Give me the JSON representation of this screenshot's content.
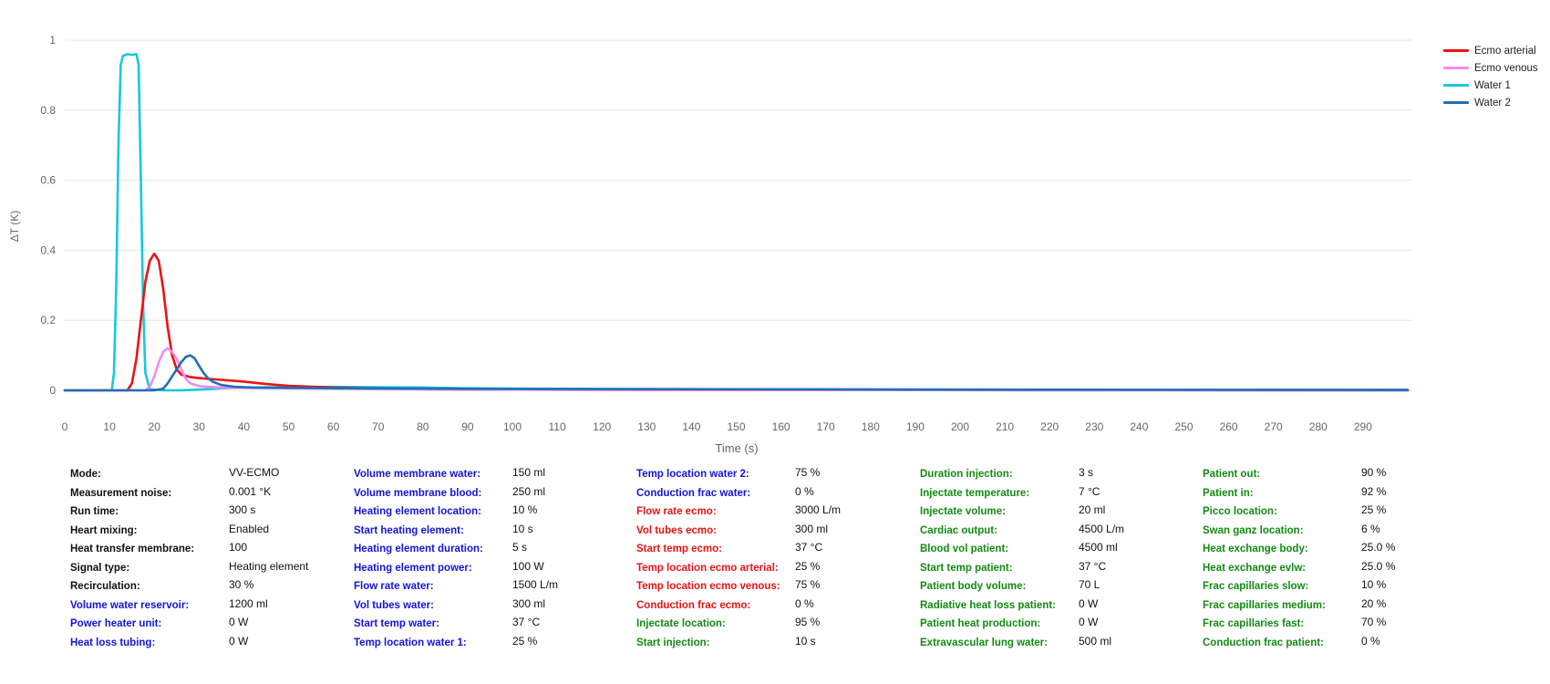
{
  "colors": {
    "black": "#111111",
    "blue": "#1414e0",
    "red": "#e81414",
    "green": "#138a13"
  },
  "chart_data": {
    "type": "line",
    "title": "",
    "xlabel": "Time (s)",
    "ylabel": "ΔT (K)",
    "xlim": [
      0,
      300
    ],
    "ylim": [
      0,
      1
    ],
    "x_ticks": [
      "0",
      "10",
      "20",
      "30",
      "40",
      "50",
      "60",
      "70",
      "80",
      "90",
      "100",
      "110",
      "120",
      "130",
      "140",
      "150",
      "160",
      "170",
      "180",
      "190",
      "200",
      "210",
      "220",
      "230",
      "240",
      "250",
      "260",
      "270",
      "280",
      "290"
    ],
    "y_ticks": [
      "0",
      "0.2",
      "0.4",
      "0.6",
      "0.8",
      "1"
    ],
    "grid": "horizontal",
    "legend": "top-right",
    "series": [
      {
        "name": "Ecmo arterial",
        "color": "#ee1111",
        "points": [
          [
            0,
            0
          ],
          [
            14,
            0
          ],
          [
            15,
            0.02
          ],
          [
            16,
            0.09
          ],
          [
            17,
            0.2
          ],
          [
            18,
            0.31
          ],
          [
            19,
            0.37
          ],
          [
            20,
            0.39
          ],
          [
            21,
            0.37
          ],
          [
            22,
            0.29
          ],
          [
            23,
            0.18
          ],
          [
            24,
            0.1
          ],
          [
            25,
            0.06
          ],
          [
            26,
            0.045
          ],
          [
            28,
            0.038
          ],
          [
            30,
            0.035
          ],
          [
            35,
            0.03
          ],
          [
            40,
            0.025
          ],
          [
            45,
            0.018
          ],
          [
            50,
            0.013
          ],
          [
            60,
            0.008
          ],
          [
            70,
            0.005
          ],
          [
            80,
            0.003
          ],
          [
            100,
            0.002
          ],
          [
            150,
            0.001
          ],
          [
            300,
            0
          ]
        ]
      },
      {
        "name": "Ecmo venous",
        "color": "#f08cf0",
        "points": [
          [
            0,
            0
          ],
          [
            18,
            0
          ],
          [
            19,
            0.01
          ],
          [
            20,
            0.04
          ],
          [
            21,
            0.08
          ],
          [
            22,
            0.11
          ],
          [
            23,
            0.12
          ],
          [
            24,
            0.11
          ],
          [
            25,
            0.09
          ],
          [
            26,
            0.06
          ],
          [
            27,
            0.035
          ],
          [
            28,
            0.02
          ],
          [
            30,
            0.012
          ],
          [
            35,
            0.008
          ],
          [
            40,
            0.007
          ],
          [
            50,
            0.006
          ],
          [
            60,
            0.005
          ],
          [
            80,
            0.003
          ],
          [
            100,
            0.002
          ],
          [
            150,
            0.001
          ],
          [
            300,
            0
          ]
        ]
      },
      {
        "name": "Water 1",
        "color": "#17c8e0",
        "points": [
          [
            0,
            0
          ],
          [
            10.5,
            0
          ],
          [
            11,
            0.05
          ],
          [
            11.5,
            0.3
          ],
          [
            12,
            0.7
          ],
          [
            12.5,
            0.93
          ],
          [
            13,
            0.955
          ],
          [
            14,
            0.96
          ],
          [
            15,
            0.958
          ],
          [
            16,
            0.96
          ],
          [
            16.5,
            0.93
          ],
          [
            17,
            0.6
          ],
          [
            17.5,
            0.25
          ],
          [
            18,
            0.05
          ],
          [
            19,
            0.003
          ],
          [
            22,
            0
          ],
          [
            26,
            0
          ],
          [
            30,
            0.002
          ],
          [
            35,
            0.006
          ],
          [
            40,
            0.008
          ],
          [
            50,
            0.009
          ],
          [
            60,
            0.01
          ],
          [
            70,
            0.009
          ],
          [
            80,
            0.008
          ],
          [
            90,
            0.006
          ],
          [
            100,
            0.005
          ],
          [
            120,
            0.004
          ],
          [
            150,
            0.003
          ],
          [
            200,
            0.002
          ],
          [
            250,
            0.001
          ],
          [
            300,
            0.001
          ]
        ]
      },
      {
        "name": "Water 2",
        "color": "#1f6fb8",
        "points": [
          [
            0,
            0
          ],
          [
            20,
            0
          ],
          [
            22,
            0.005
          ],
          [
            23,
            0.02
          ],
          [
            24,
            0.04
          ],
          [
            25,
            0.06
          ],
          [
            26,
            0.08
          ],
          [
            27,
            0.095
          ],
          [
            28,
            0.1
          ],
          [
            29,
            0.092
          ],
          [
            30,
            0.07
          ],
          [
            31,
            0.05
          ],
          [
            32,
            0.035
          ],
          [
            33,
            0.025
          ],
          [
            35,
            0.015
          ],
          [
            38,
            0.01
          ],
          [
            42,
            0.008
          ],
          [
            50,
            0.007
          ],
          [
            60,
            0.006
          ],
          [
            80,
            0.005
          ],
          [
            100,
            0.004
          ],
          [
            150,
            0.003
          ],
          [
            200,
            0.002
          ],
          [
            300,
            0.001
          ]
        ]
      }
    ]
  },
  "params": [
    [
      {
        "label": "Mode:",
        "value": "VV-ECMO",
        "c": "black"
      },
      {
        "label": "Measurement noise:",
        "value": "0.001 °K",
        "c": "black"
      },
      {
        "label": "Run time:",
        "value": "300 s",
        "c": "black"
      },
      {
        "label": "Heart mixing:",
        "value": "Enabled",
        "c": "black"
      },
      {
        "label": "Heat transfer membrane:",
        "value": "100",
        "c": "black"
      },
      {
        "label": "Signal type:",
        "value": "Heating element",
        "c": "black"
      },
      {
        "label": "Recirculation:",
        "value": "30 %",
        "c": "black"
      },
      {
        "label": "Volume water reservoir:",
        "value": "1200 ml",
        "c": "blue"
      },
      {
        "label": "Power heater unit:",
        "value": "0 W",
        "c": "blue"
      },
      {
        "label": "Heat loss tubing:",
        "value": "0 W",
        "c": "blue"
      }
    ],
    [
      {
        "label": "Volume membrane water:",
        "value": "150 ml",
        "c": "blue"
      },
      {
        "label": "Volume membrane blood:",
        "value": "250 ml",
        "c": "blue"
      },
      {
        "label": "Heating element location:",
        "value": "10 %",
        "c": "blue"
      },
      {
        "label": "Start heating element:",
        "value": "10 s",
        "c": "blue"
      },
      {
        "label": "Heating element duration:",
        "value": "5 s",
        "c": "blue"
      },
      {
        "label": "Heating element power:",
        "value": "100 W",
        "c": "blue"
      },
      {
        "label": "Flow rate water:",
        "value": "1500 L/m",
        "c": "blue"
      },
      {
        "label": "Vol tubes water:",
        "value": "300 ml",
        "c": "blue"
      },
      {
        "label": "Start temp water:",
        "value": "37 °C",
        "c": "blue"
      },
      {
        "label": "Temp location water 1:",
        "value": "25 %",
        "c": "blue"
      }
    ],
    [
      {
        "label": "Temp location water 2:",
        "value": "75 %",
        "c": "blue"
      },
      {
        "label": "Conduction frac water:",
        "value": "0 %",
        "c": "blue"
      },
      {
        "label": "Flow rate ecmo:",
        "value": "3000 L/m",
        "c": "red"
      },
      {
        "label": "Vol tubes ecmo:",
        "value": "300 ml",
        "c": "red"
      },
      {
        "label": "Start temp ecmo:",
        "value": "37 °C",
        "c": "red"
      },
      {
        "label": "Temp location ecmo arterial:",
        "value": "25 %",
        "c": "red"
      },
      {
        "label": "Temp location ecmo venous:",
        "value": "75 %",
        "c": "red"
      },
      {
        "label": "Conduction frac ecmo:",
        "value": "0 %",
        "c": "red"
      },
      {
        "label": "Injectate location:",
        "value": "95 %",
        "c": "green"
      },
      {
        "label": "Start injection:",
        "value": "10 s",
        "c": "green"
      }
    ],
    [
      {
        "label": "Duration injection:",
        "value": "3 s",
        "c": "green"
      },
      {
        "label": "Injectate temperature:",
        "value": "7 °C",
        "c": "green"
      },
      {
        "label": "Injectate volume:",
        "value": "20 ml",
        "c": "green"
      },
      {
        "label": "Cardiac output:",
        "value": "4500 L/m",
        "c": "green"
      },
      {
        "label": "Blood vol patient:",
        "value": "4500 ml",
        "c": "green"
      },
      {
        "label": "Start temp patient:",
        "value": "37 °C",
        "c": "green"
      },
      {
        "label": "Patient body volume:",
        "value": "70 L",
        "c": "green"
      },
      {
        "label": "Radiative heat loss patient:",
        "value": "0 W",
        "c": "green"
      },
      {
        "label": "Patient heat production:",
        "value": "0 W",
        "c": "green"
      },
      {
        "label": "Extravascular lung water:",
        "value": "500 ml",
        "c": "green"
      }
    ],
    [
      {
        "label": "Patient out:",
        "value": "90 %",
        "c": "green"
      },
      {
        "label": "Patient in:",
        "value": "92 %",
        "c": "green"
      },
      {
        "label": "Picco location:",
        "value": "25 %",
        "c": "green"
      },
      {
        "label": "Swan ganz location:",
        "value": "6 %",
        "c": "green"
      },
      {
        "label": "Heat exchange body:",
        "value": "25.0 %",
        "c": "green"
      },
      {
        "label": "Heat exchange evlw:",
        "value": "25.0 %",
        "c": "green"
      },
      {
        "label": "Frac capillaries slow:",
        "value": "10 %",
        "c": "green"
      },
      {
        "label": "Frac capillaries medium:",
        "value": "20 %",
        "c": "green"
      },
      {
        "label": "Frac capillaries fast:",
        "value": "70 %",
        "c": "green"
      },
      {
        "label": "Conduction frac patient:",
        "value": "0 %",
        "c": "green"
      }
    ]
  ]
}
